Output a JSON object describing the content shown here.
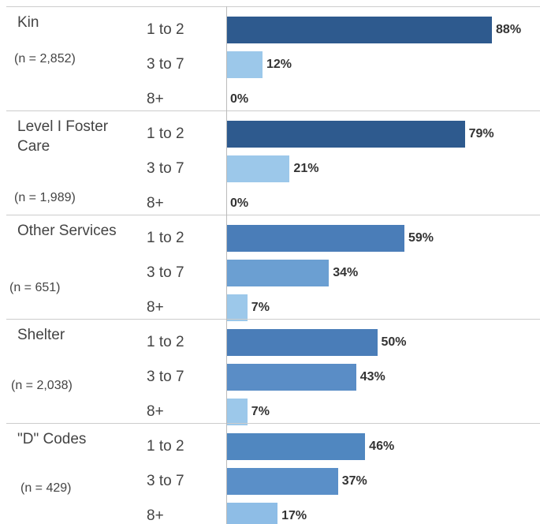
{
  "chart_data": {
    "type": "bar",
    "categories": [
      "1 to 2",
      "3 to 7",
      "8+"
    ],
    "xlim": [
      0,
      100
    ],
    "groups": [
      {
        "name": "Kin",
        "note": "(n = 2,852)",
        "values": [
          88,
          12,
          0
        ],
        "value_labels": [
          "88%",
          "12%",
          "0%"
        ],
        "colors": [
          "#2e5a8e",
          "#9cc8ea",
          "#9cc8ea"
        ]
      },
      {
        "name": "Level I Foster Care",
        "note": "(n = 1,989)",
        "values": [
          79,
          21,
          0
        ],
        "value_labels": [
          "79%",
          "21%",
          "0%"
        ],
        "colors": [
          "#2e5a8e",
          "#9cc8ea",
          "#9cc8ea"
        ]
      },
      {
        "name": "Other Services",
        "note": "(n = 651)",
        "values": [
          59,
          34,
          7
        ],
        "value_labels": [
          "59%",
          "34%",
          "7%"
        ],
        "colors": [
          "#4a7db8",
          "#6b9fd2",
          "#9cc8ea"
        ]
      },
      {
        "name": "Shelter",
        "note": "(n = 2,038)",
        "values": [
          50,
          43,
          7
        ],
        "value_labels": [
          "50%",
          "43%",
          "7%"
        ],
        "colors": [
          "#4a7db8",
          "#5a8dc6",
          "#9cc8ea"
        ]
      },
      {
        "name": "\"D\" Codes",
        "note": "(n = 429)",
        "values": [
          46,
          37,
          17
        ],
        "value_labels": [
          "46%",
          "37%",
          "17%"
        ],
        "colors": [
          "#5087c0",
          "#5a8fc8",
          "#8ebde6"
        ]
      }
    ]
  }
}
